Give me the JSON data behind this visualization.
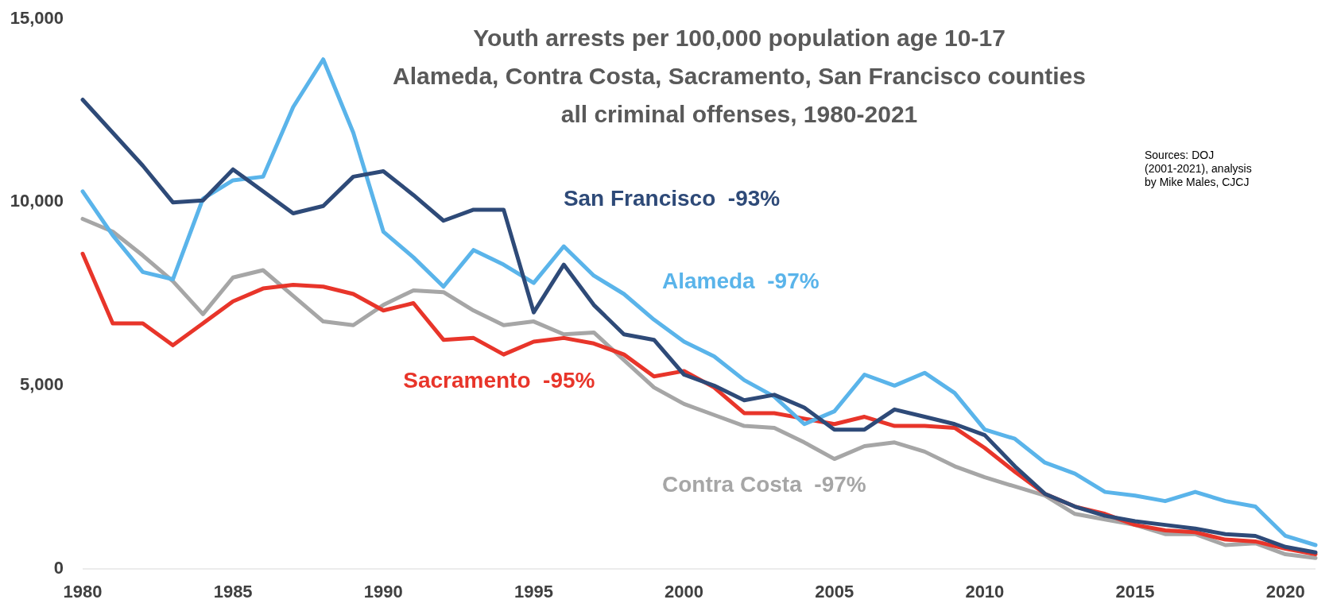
{
  "chart_data": {
    "type": "line",
    "title": "Youth arrests per 100,000 population age 10-17\nAlameda, Contra Costa, Sacramento, San Francisco counties\nall criminal offenses, 1980-2021",
    "x": [
      1980,
      1981,
      1982,
      1983,
      1984,
      1985,
      1986,
      1987,
      1988,
      1989,
      1990,
      1991,
      1992,
      1993,
      1994,
      1995,
      1996,
      1997,
      1998,
      1999,
      2000,
      2001,
      2002,
      2003,
      2004,
      2005,
      2006,
      2007,
      2008,
      2009,
      2010,
      2011,
      2012,
      2013,
      2014,
      2015,
      2016,
      2017,
      2018,
      2019,
      2020,
      2021
    ],
    "xlim": [
      1980,
      2021
    ],
    "xticks": [
      1980,
      1985,
      1990,
      1995,
      2000,
      2005,
      2010,
      2015,
      2020
    ],
    "ylim": [
      0,
      15000
    ],
    "yticks": [
      {
        "value": 0,
        "label": "0"
      },
      {
        "value": 5000,
        "label": "5,000"
      },
      {
        "value": 10000,
        "label": "10,000"
      },
      {
        "value": 15000,
        "label": "15,000"
      }
    ],
    "grid": false,
    "marker": "none",
    "line_style": "solid",
    "annotations": [
      "Sources: DOJ\n(2001-2021), analysis\nby Mike Males, CJCJ"
    ],
    "series": [
      {
        "name": "Contra Costa  -97%",
        "color": "#a6a6a6",
        "values": [
          9550,
          9200,
          8550,
          7850,
          6950,
          7950,
          8150,
          7450,
          6750,
          6650,
          7200,
          7600,
          7550,
          7050,
          6650,
          6750,
          6400,
          6450,
          5700,
          4950,
          4500,
          4200,
          3900,
          3850,
          3450,
          3000,
          3350,
          3450,
          3200,
          2800,
          2500,
          2250,
          2000,
          1500,
          1350,
          1200,
          950,
          950,
          650,
          700,
          400,
          300
        ]
      },
      {
        "name": "Sacramento  -95%",
        "color": "#e8352a",
        "values": [
          8600,
          6700,
          6700,
          6100,
          6700,
          7300,
          7650,
          7750,
          7700,
          7500,
          7050,
          7250,
          6250,
          6300,
          5850,
          6200,
          6300,
          6150,
          5850,
          5250,
          5400,
          4950,
          4250,
          4250,
          4100,
          3950,
          4150,
          3900,
          3900,
          3850,
          3300,
          2650,
          2050,
          1700,
          1500,
          1200,
          1050,
          1000,
          800,
          750,
          550,
          400
        ]
      },
      {
        "name": "Alameda  -97%",
        "color": "#5ab4ea",
        "values": [
          10300,
          9100,
          8100,
          7900,
          10100,
          10600,
          10700,
          12600,
          13900,
          11900,
          9200,
          8500,
          7700,
          8700,
          8300,
          7800,
          8800,
          8000,
          7500,
          6800,
          6200,
          5800,
          5150,
          4700,
          3950,
          4300,
          5300,
          5000,
          5350,
          4800,
          3800,
          3550,
          2900,
          2600,
          2100,
          2000,
          1850,
          2100,
          1850,
          1700,
          900,
          650
        ]
      },
      {
        "name": "San Francisco  -93%",
        "color": "#2e4a78",
        "values": [
          12800,
          11900,
          11000,
          10000,
          10050,
          10900,
          10300,
          9700,
          9900,
          10700,
          10850,
          10200,
          9500,
          9800,
          9800,
          7000,
          8300,
          7200,
          6400,
          6250,
          5300,
          5000,
          4600,
          4750,
          4400,
          3800,
          3800,
          4350,
          4150,
          3950,
          3650,
          2800,
          2050,
          1700,
          1450,
          1300,
          1200,
          1100,
          950,
          900,
          600,
          450
        ]
      }
    ]
  }
}
